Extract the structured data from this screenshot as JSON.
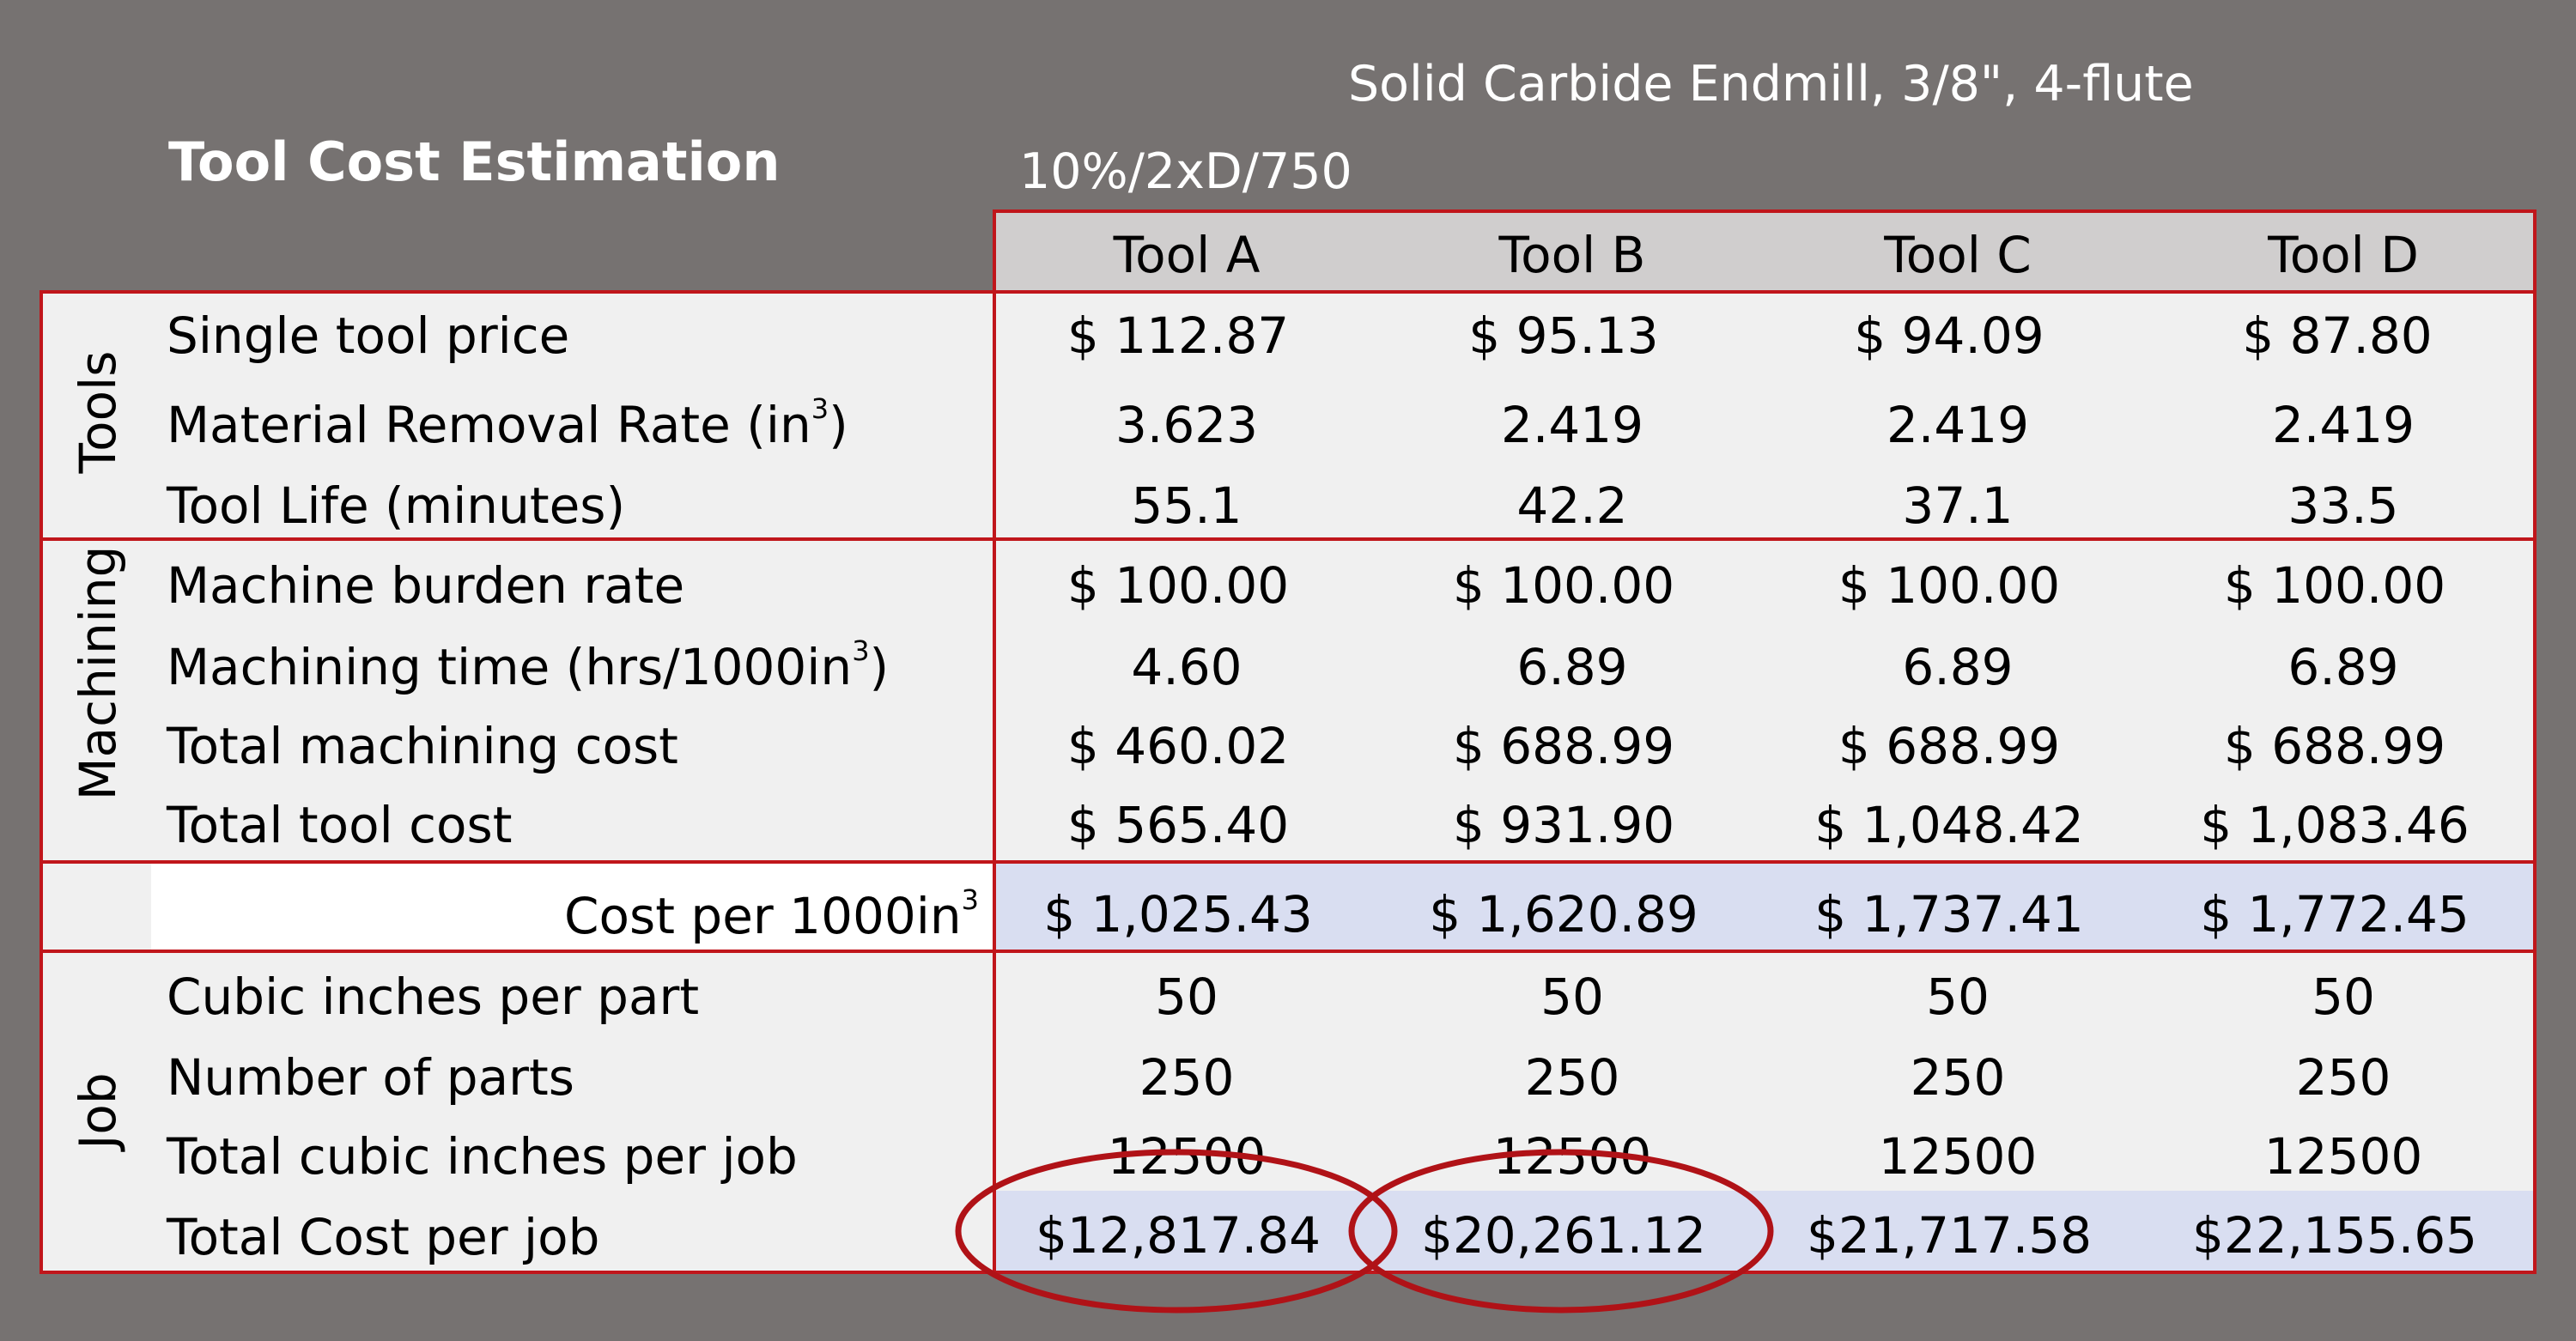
{
  "title": "Tool Cost Estimation",
  "subtitle": "Solid Carbide Endmill, 3/8\", 4-flute",
  "params": "10%/2xD/750",
  "columns": [
    "Tool A",
    "Tool B",
    "Tool C",
    "Tool D"
  ],
  "sections": {
    "tools": "Tools",
    "machining": "Machining",
    "job": "Job"
  },
  "rows": [
    {
      "label": "Single tool price",
      "values": [
        "$ 112.87",
        "$ 95.13",
        "$ 94.09",
        "$ 87.80"
      ]
    },
    {
      "label": "Material Removal Rate (in",
      "sup": "3",
      "suffix": ")",
      "values": [
        "3.623",
        "2.419",
        "2.419",
        "2.419"
      ]
    },
    {
      "label": "Tool Life (minutes)",
      "values": [
        "55.1",
        "42.2",
        "37.1",
        "33.5"
      ]
    },
    {
      "label": "Machine burden rate",
      "values": [
        "$ 100.00",
        "$ 100.00",
        "$ 100.00",
        "$ 100.00"
      ]
    },
    {
      "label": "Machining time (hrs/1000in",
      "sup": "3",
      "suffix": ")",
      "values": [
        "4.60",
        "6.89",
        "6.89",
        "6.89"
      ]
    },
    {
      "label": "Total machining cost",
      "values": [
        "$ 460.02",
        "$ 688.99",
        "$ 688.99",
        "$ 688.99"
      ]
    },
    {
      "label": "Total tool cost",
      "values": [
        "$ 565.40",
        "$ 931.90",
        "$ 1,048.42",
        "$ 1,083.46"
      ]
    },
    {
      "label": "Cost per 1000in",
      "sup": "3",
      "values": [
        "$ 1,025.43",
        "$ 1,620.89",
        "$ 1,737.41",
        "$ 1,772.45"
      ]
    },
    {
      "label": "Cubic inches per part",
      "values": [
        "50",
        "50",
        "50",
        "50"
      ]
    },
    {
      "label": "Number of parts",
      "values": [
        "250",
        "250",
        "250",
        "250"
      ]
    },
    {
      "label": "Total cubic inches per job",
      "values": [
        "12500",
        "12500",
        "12500",
        "12500"
      ]
    },
    {
      "label": "Total Cost per job",
      "values": [
        "$12,817.84",
        "$20,261.12",
        "$21,717.58",
        "$22,155.65"
      ]
    }
  ],
  "colors": {
    "background": "#767271",
    "table_bg": "#f0f0f0",
    "header_bg": "#d0cece",
    "highlight_bg": "#d9def1",
    "border": "#c0161b",
    "circle": "#b01217"
  }
}
